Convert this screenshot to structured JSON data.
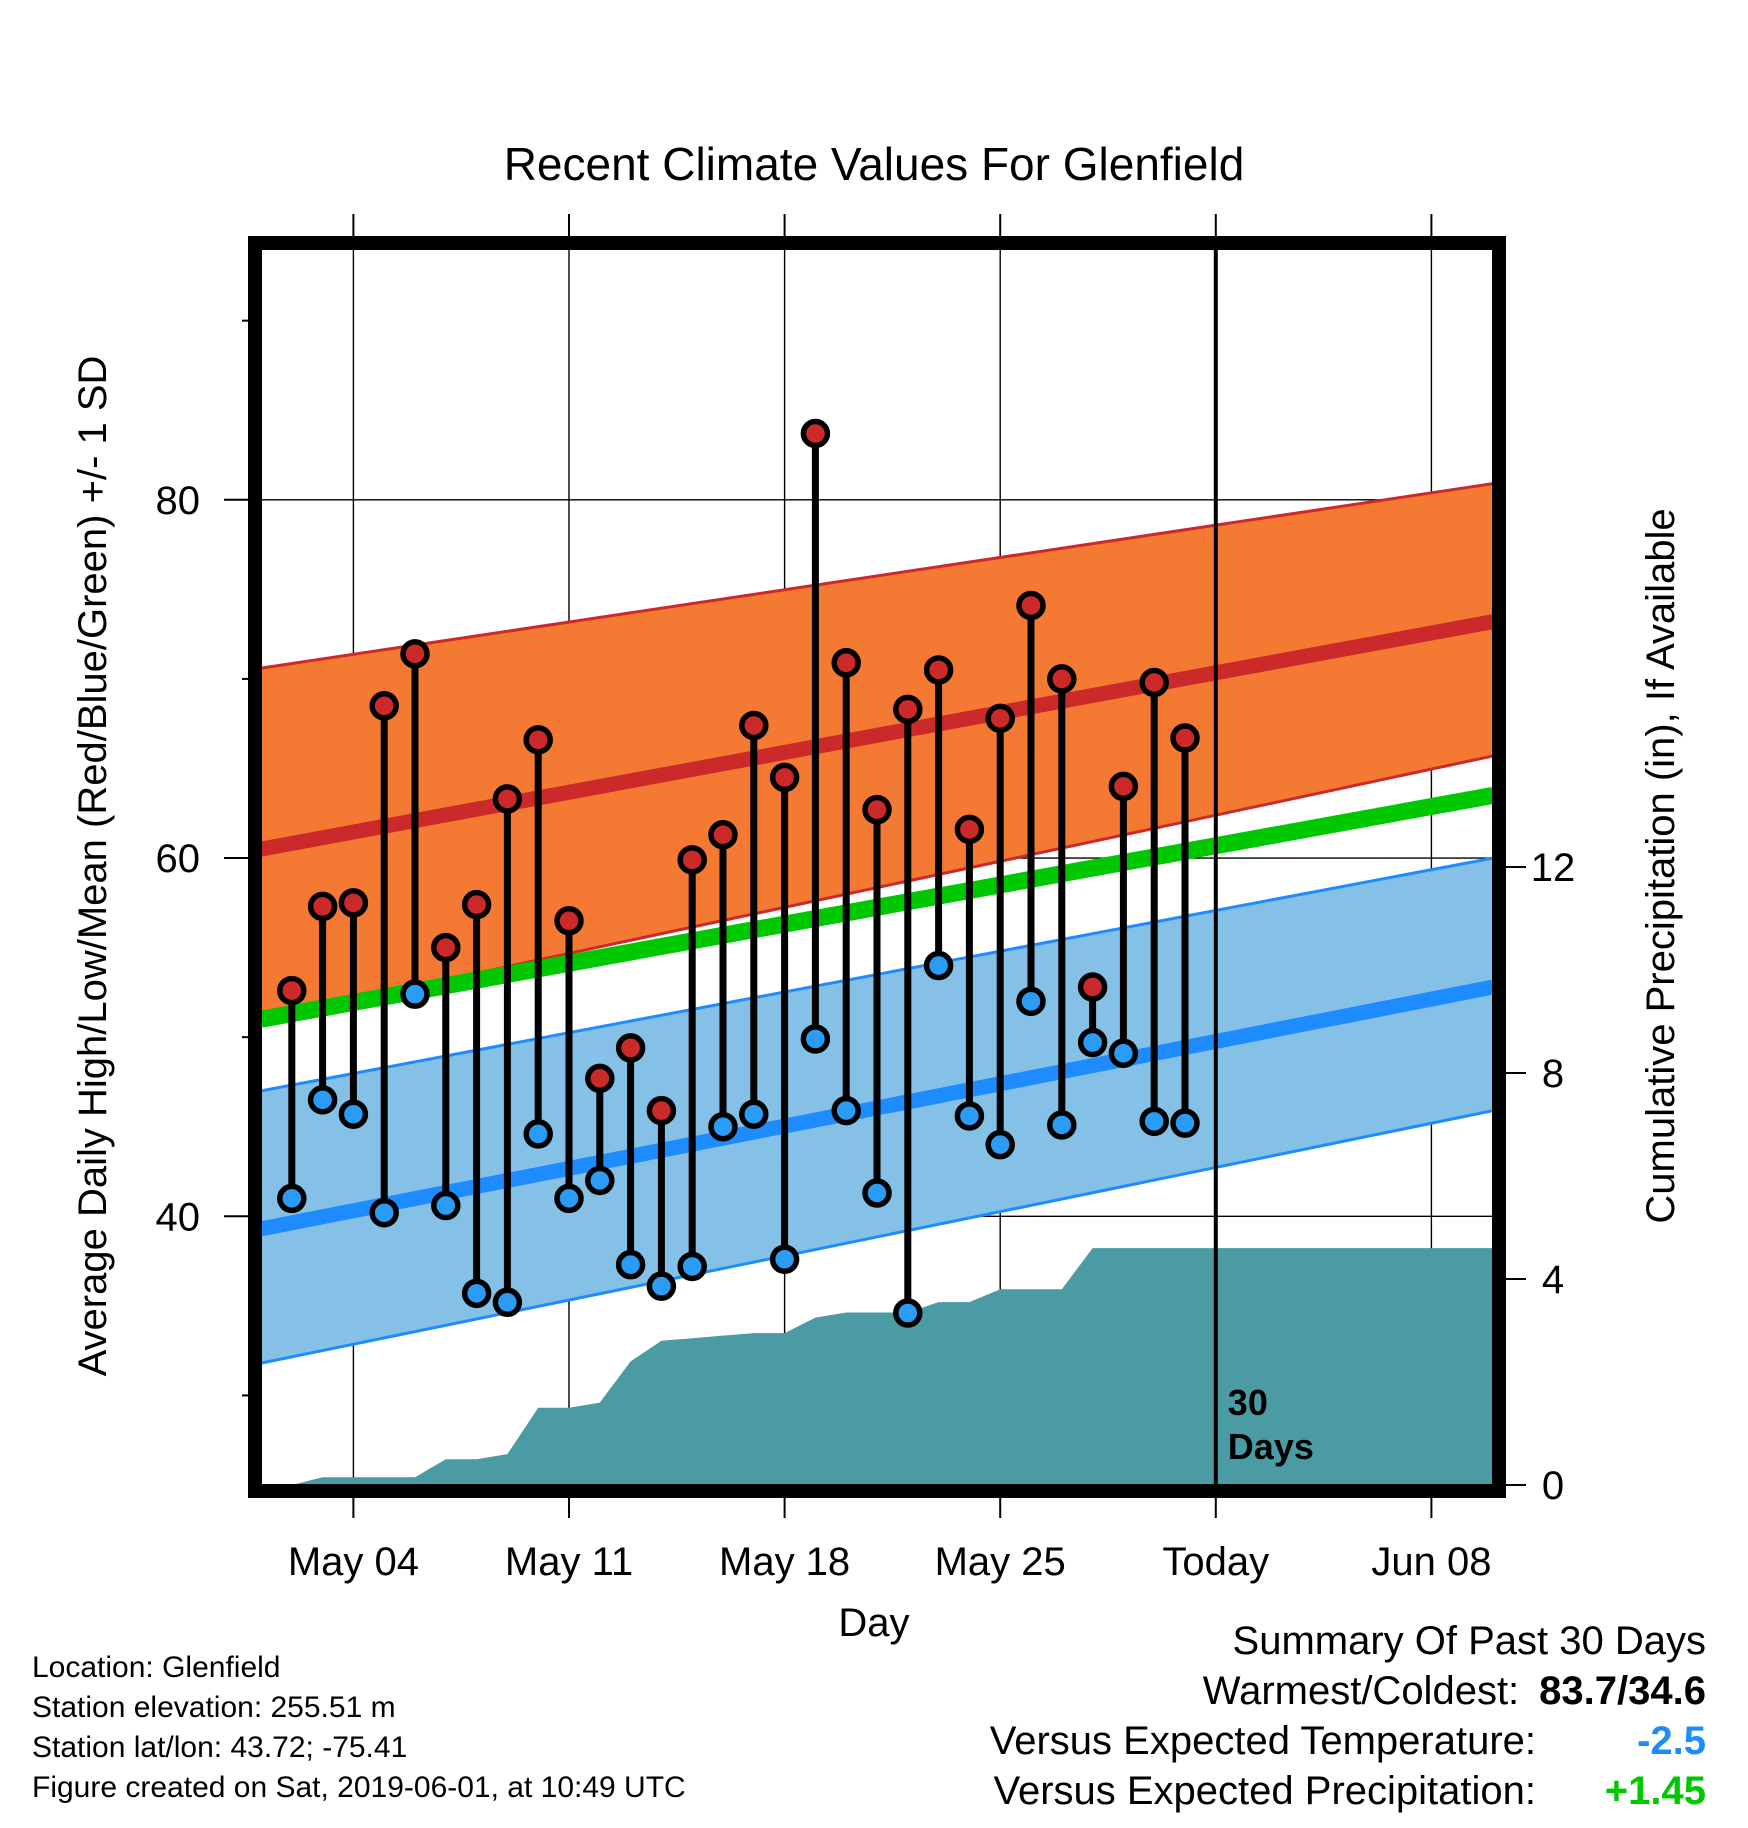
{
  "chart_data": {
    "type": "line",
    "title": "Recent Climate Values For Glenfield",
    "xlabel": "Day",
    "ylabel_left": "Average Daily High/Low/Mean (Red/Blue/Green) +/- 1 SD",
    "ylabel_right": "Cumulative Precipitation (in), If Available",
    "xlim": [
      "2019-05-01",
      "2019-06-10"
    ],
    "ylim_left": [
      25,
      94
    ],
    "ylim_right": [
      0,
      24
    ],
    "x_ticks": [
      {
        "date": "2019-05-04",
        "label": "May 04"
      },
      {
        "date": "2019-05-11",
        "label": "May 11"
      },
      {
        "date": "2019-05-18",
        "label": "May 18"
      },
      {
        "date": "2019-05-25",
        "label": "May 25"
      },
      {
        "date": "2019-06-01",
        "label": "Today"
      },
      {
        "date": "2019-06-08",
        "label": "Jun 08"
      }
    ],
    "y_ticks_left": [
      40,
      60,
      80
    ],
    "y_ticks_right": [
      0,
      4,
      8,
      12
    ],
    "today": "2019-06-01",
    "today_label": "30\nDays",
    "normal_high": {
      "start": 60.5,
      "end": 73.2,
      "sd_upper_start": 70.6,
      "sd_upper_end": 80.9,
      "sd_lower_start": 51.0,
      "sd_lower_end": 65.7
    },
    "normal_mean": {
      "start": 51.0,
      "end": 63.5
    },
    "normal_low": {
      "start": 39.3,
      "end": 52.8,
      "sd_upper_start": 47.0,
      "sd_upper_end": 60.0,
      "sd_lower_start": 31.8,
      "sd_lower_end": 45.9
    },
    "colors": {
      "high_band": "#f47a33",
      "high_mean": "#cc2a2a",
      "low_band": "#85c1e6",
      "low_mean": "#1e8cff",
      "mean_line": "#00c800",
      "precip": "#4a9ba4",
      "high_dot": "#cc2a2a",
      "low_dot": "#2b9cf5"
    },
    "series": [
      {
        "name": "High",
        "dates": [
          "2019-05-02",
          "2019-05-03",
          "2019-05-04",
          "2019-05-05",
          "2019-05-06",
          "2019-05-07",
          "2019-05-08",
          "2019-05-09",
          "2019-05-10",
          "2019-05-11",
          "2019-05-12",
          "2019-05-13",
          "2019-05-14",
          "2019-05-15",
          "2019-05-16",
          "2019-05-17",
          "2019-05-18",
          "2019-05-19",
          "2019-05-20",
          "2019-05-21",
          "2019-05-22",
          "2019-05-23",
          "2019-05-24",
          "2019-05-25",
          "2019-05-26",
          "2019-05-27",
          "2019-05-28",
          "2019-05-29",
          "2019-05-30",
          "2019-05-31"
        ],
        "values": [
          52.6,
          57.3,
          57.5,
          68.5,
          71.4,
          55.0,
          57.4,
          63.3,
          66.6,
          56.5,
          47.7,
          49.4,
          45.9,
          59.9,
          61.3,
          67.4,
          64.5,
          83.7,
          70.9,
          62.7,
          68.3,
          70.5,
          61.6,
          67.8,
          74.1,
          70.0,
          52.8,
          64.0,
          69.8,
          66.7
        ]
      },
      {
        "name": "Low",
        "dates": [
          "2019-05-02",
          "2019-05-03",
          "2019-05-04",
          "2019-05-05",
          "2019-05-06",
          "2019-05-07",
          "2019-05-08",
          "2019-05-09",
          "2019-05-10",
          "2019-05-11",
          "2019-05-12",
          "2019-05-13",
          "2019-05-14",
          "2019-05-15",
          "2019-05-16",
          "2019-05-17",
          "2019-05-18",
          "2019-05-19",
          "2019-05-20",
          "2019-05-21",
          "2019-05-22",
          "2019-05-23",
          "2019-05-24",
          "2019-05-25",
          "2019-05-26",
          "2019-05-27",
          "2019-05-28",
          "2019-05-29",
          "2019-05-30",
          "2019-05-31"
        ],
        "values": [
          41.0,
          46.5,
          45.7,
          40.2,
          52.4,
          40.6,
          35.7,
          35.2,
          44.6,
          41.0,
          42.0,
          37.3,
          36.1,
          37.2,
          45.0,
          45.7,
          37.6,
          49.9,
          45.9,
          41.3,
          34.6,
          54.0,
          45.6,
          44.0,
          52.0,
          45.1,
          49.7,
          49.1,
          45.3,
          45.2
        ]
      },
      {
        "name": "Cumulative Precipitation",
        "dates": [
          "2019-05-01",
          "2019-05-02",
          "2019-05-03",
          "2019-05-04",
          "2019-05-05",
          "2019-05-06",
          "2019-05-07",
          "2019-05-08",
          "2019-05-09",
          "2019-05-10",
          "2019-05-11",
          "2019-05-12",
          "2019-05-13",
          "2019-05-14",
          "2019-05-15",
          "2019-05-16",
          "2019-05-17",
          "2019-05-18",
          "2019-05-19",
          "2019-05-20",
          "2019-05-21",
          "2019-05-22",
          "2019-05-23",
          "2019-05-24",
          "2019-05-25",
          "2019-05-26",
          "2019-05-27",
          "2019-05-28",
          "2019-05-29",
          "2019-05-30",
          "2019-05-31",
          "2019-06-10"
        ],
        "values": [
          0.0,
          0.0,
          0.15,
          0.15,
          0.15,
          0.15,
          0.5,
          0.5,
          0.6,
          1.5,
          1.5,
          1.6,
          2.4,
          2.8,
          2.85,
          2.9,
          2.95,
          2.95,
          3.25,
          3.35,
          3.35,
          3.35,
          3.55,
          3.55,
          3.8,
          3.8,
          3.8,
          4.6,
          4.6,
          4.6,
          4.6,
          4.6
        ]
      }
    ]
  },
  "footer": {
    "location": "Location: Glenfield",
    "elevation": "Station elevation: 255.51 m",
    "latlon": "Station lat/lon: 43.72; -75.41",
    "created": "Figure created on Sat, 2019-06-01, at 10:49 UTC"
  },
  "summary": {
    "title": "Summary Of Past 30 Days",
    "warm_cold_label": "Warmest/Coldest:",
    "warm_cold_value": "83.7/34.6",
    "temp_label": "Versus Expected Temperature:",
    "temp_value": "-2.5",
    "temp_color": "#1e8cff",
    "precip_label": "Versus Expected Precipitation:",
    "precip_value": "+1.45",
    "precip_color": "#00c800"
  }
}
